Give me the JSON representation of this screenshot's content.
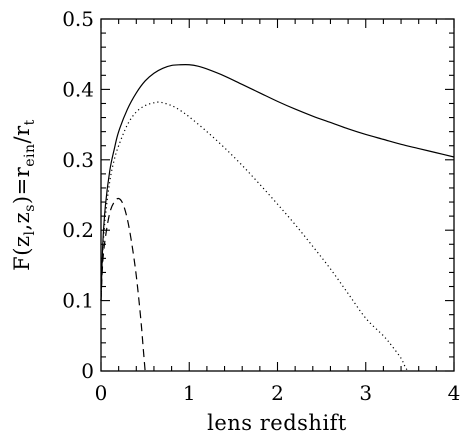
{
  "chart_data": {
    "type": "line",
    "title": "",
    "xlabel": "lens redshift",
    "ylabel": {
      "prefix": "F(z",
      "sub1": "l",
      "sep": ",z",
      "sub2": "s",
      "mid": ")=r",
      "sub3": "ein",
      "slash": "/r",
      "sub4": "t"
    },
    "xlim": [
      0,
      4
    ],
    "ylim": [
      0,
      0.5
    ],
    "x_ticks": [
      {
        "value": 0,
        "label": "0"
      },
      {
        "value": 1,
        "label": "1"
      },
      {
        "value": 2,
        "label": "2"
      },
      {
        "value": 3,
        "label": "3"
      },
      {
        "value": 4,
        "label": "4"
      }
    ],
    "y_ticks": [
      {
        "value": 0,
        "label": "0"
      },
      {
        "value": 0.1,
        "label": "0.1"
      },
      {
        "value": 0.2,
        "label": "0.2"
      },
      {
        "value": 0.3,
        "label": "0.3"
      },
      {
        "value": 0.4,
        "label": "0.4"
      },
      {
        "value": 0.5,
        "label": "0.5"
      }
    ],
    "x_minor_step": 0.2,
    "y_minor_step": 0.02,
    "grid": false,
    "legend": "none",
    "series": [
      {
        "style": "solid",
        "x": [
          0,
          0.02,
          0.05,
          0.1,
          0.15,
          0.2,
          0.3,
          0.4,
          0.5,
          0.6,
          0.7,
          0.8,
          0.9,
          1.0,
          1.1,
          1.2,
          1.4,
          1.6,
          1.8,
          2.0,
          2.2,
          2.4,
          2.6,
          2.8,
          3.0,
          3.2,
          3.4,
          3.6,
          3.8,
          4.0
        ],
        "y": [
          0.1,
          0.18,
          0.235,
          0.285,
          0.315,
          0.34,
          0.372,
          0.395,
          0.412,
          0.423,
          0.43,
          0.434,
          0.435,
          0.435,
          0.433,
          0.429,
          0.419,
          0.407,
          0.395,
          0.383,
          0.372,
          0.362,
          0.353,
          0.344,
          0.336,
          0.329,
          0.322,
          0.316,
          0.31,
          0.304
        ]
      },
      {
        "style": "dotted",
        "x": [
          0,
          0.02,
          0.05,
          0.1,
          0.15,
          0.2,
          0.3,
          0.4,
          0.5,
          0.6,
          0.65,
          0.7,
          0.8,
          0.9,
          1.0,
          1.2,
          1.4,
          1.6,
          1.8,
          2.0,
          2.2,
          2.4,
          2.6,
          2.8,
          3.0,
          3.2,
          3.3,
          3.4,
          3.45,
          3.48
        ],
        "y": [
          0.1,
          0.17,
          0.22,
          0.27,
          0.3,
          0.32,
          0.35,
          0.368,
          0.377,
          0.381,
          0.382,
          0.381,
          0.377,
          0.37,
          0.361,
          0.34,
          0.317,
          0.292,
          0.265,
          0.237,
          0.208,
          0.177,
          0.145,
          0.11,
          0.075,
          0.05,
          0.035,
          0.018,
          0.005,
          0.0
        ]
      },
      {
        "style": "dashed",
        "x": [
          0,
          0.02,
          0.05,
          0.1,
          0.15,
          0.2,
          0.25,
          0.3,
          0.35,
          0.4,
          0.45,
          0.48,
          0.5
        ],
        "y": [
          0.1,
          0.155,
          0.19,
          0.225,
          0.24,
          0.245,
          0.237,
          0.215,
          0.18,
          0.135,
          0.075,
          0.03,
          0.0
        ]
      }
    ]
  }
}
